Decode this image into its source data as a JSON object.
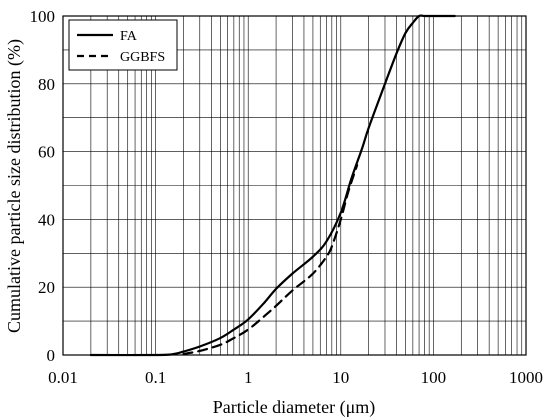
{
  "chart_data": {
    "type": "line",
    "title": "",
    "xlabel": "Particle diameter (μm)",
    "ylabel": "Cumulative particle size distribution (%)",
    "x_scale": "log",
    "xlim": [
      0.01,
      1000
    ],
    "ylim": [
      0,
      100
    ],
    "x_ticks": [
      0.01,
      0.1,
      1,
      10,
      100,
      1000
    ],
    "x_tick_labels": [
      "0.01",
      "0.1",
      "1",
      "10",
      "100",
      "1000"
    ],
    "y_ticks": [
      0,
      20,
      40,
      60,
      80,
      100
    ],
    "y_tick_labels": [
      "0",
      "20",
      "40",
      "60",
      "80",
      "100"
    ],
    "grid": true,
    "legend_position": "top-left",
    "series": [
      {
        "name": "FA",
        "line_style": "solid",
        "color": "#000000",
        "x": [
          0.02,
          0.1,
          0.15,
          0.2,
          0.3,
          0.5,
          0.7,
          1,
          1.5,
          2,
          3,
          5,
          7,
          10,
          13,
          17,
          20,
          30,
          40,
          50,
          60,
          70,
          80,
          100,
          150,
          170
        ],
        "y": [
          0,
          0,
          0.2,
          1,
          2.5,
          5,
          7.5,
          10.5,
          15.5,
          19.5,
          24,
          29,
          33.5,
          42,
          52,
          61,
          67,
          80,
          89,
          95,
          98,
          100,
          100,
          100,
          100,
          100
        ]
      },
      {
        "name": "GGBFS",
        "line_style": "dashed",
        "color": "#000000",
        "x": [
          0.2,
          0.3,
          0.5,
          0.7,
          1,
          1.5,
          2,
          3,
          5,
          7,
          8,
          10,
          12,
          15
        ],
        "y": [
          0.3,
          1.2,
          3,
          5,
          7.5,
          11.5,
          14.5,
          19,
          24,
          29,
          32,
          40,
          48,
          56
        ]
      }
    ]
  }
}
